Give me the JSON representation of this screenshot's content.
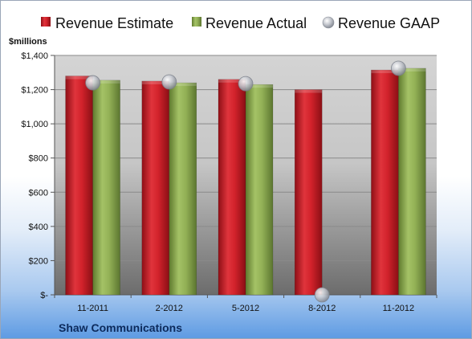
{
  "chart_data": {
    "type": "bar",
    "title": "",
    "unit_label": "$millions",
    "footer": "Shaw Communications",
    "categories": [
      "11-2011",
      "2-2012",
      "5-2012",
      "8-2012",
      "11-2012"
    ],
    "series": [
      {
        "name": "Revenue Estimate",
        "kind": "bar",
        "color": "#c8202a",
        "values": [
          1280,
          1250,
          1260,
          1200,
          1315
        ]
      },
      {
        "name": "Revenue Actual",
        "kind": "bar",
        "color": "#8fac4e",
        "values": [
          1255,
          1240,
          1230,
          null,
          1325
        ]
      },
      {
        "name": "Revenue GAAP",
        "kind": "marker",
        "color": "#b9bcc4",
        "values": [
          1240,
          1245,
          1235,
          0,
          1325
        ]
      }
    ],
    "ylim": [
      0,
      1400
    ],
    "y_ticks": [
      0,
      200,
      400,
      600,
      800,
      1000,
      1200,
      1400
    ],
    "y_tick_labels": [
      "$-",
      "$200",
      "$400",
      "$600",
      "$800",
      "$1,000",
      "$1,200",
      "$1,400"
    ],
    "grid": true,
    "legend_position": "top"
  }
}
